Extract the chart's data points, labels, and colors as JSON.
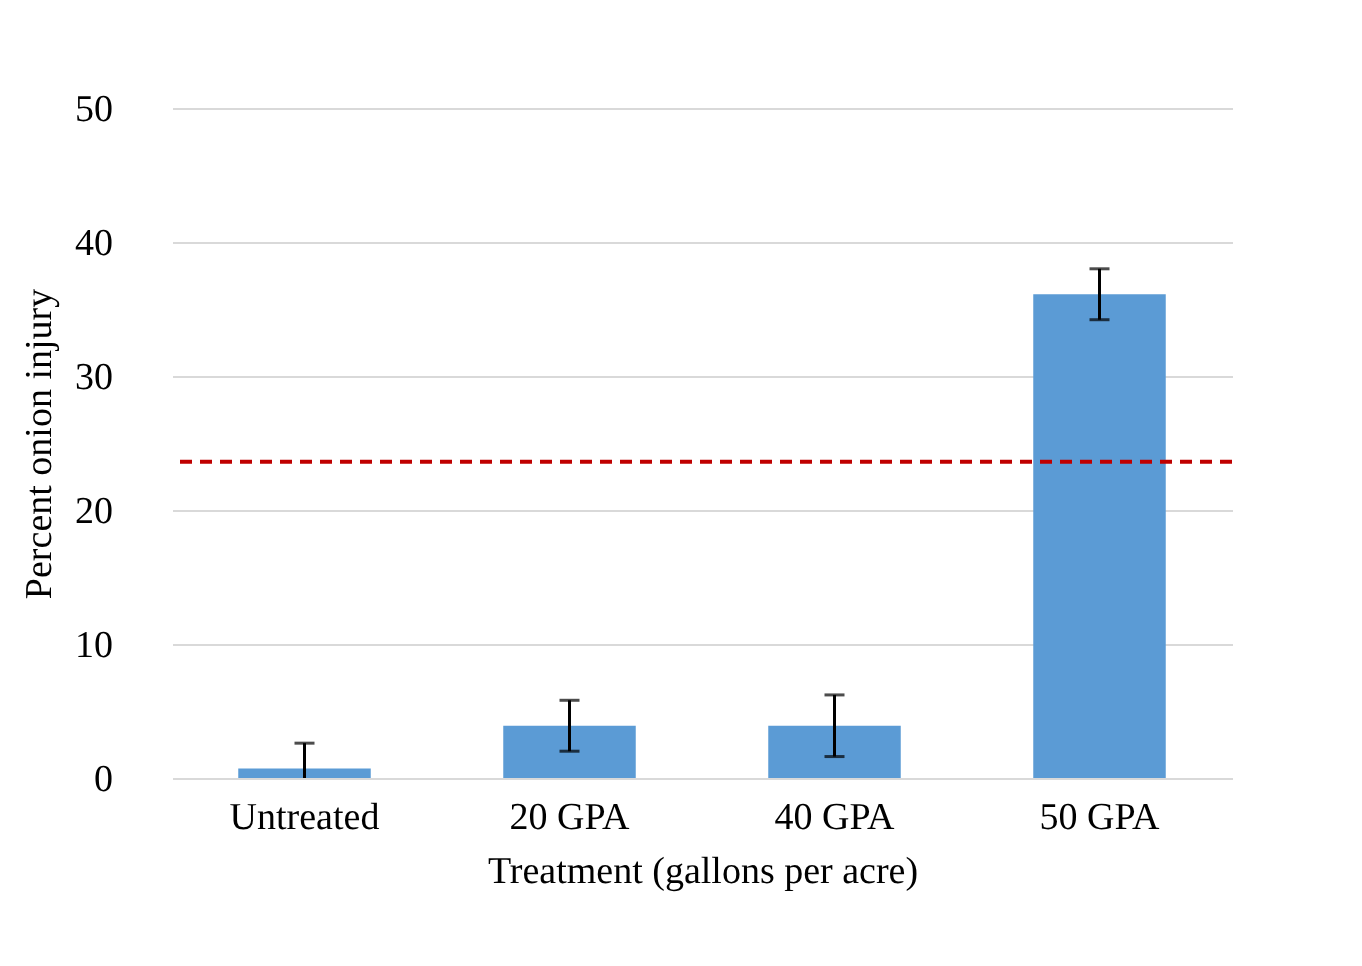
{
  "chart_data": {
    "type": "bar",
    "xlabel": "Treatment (gallons per acre)",
    "ylabel": "Percent onion injury",
    "categories": [
      "Untreated",
      "20 GPA",
      "40 GPA",
      "50 GPA"
    ],
    "values": [
      0.7,
      3.9,
      3.9,
      36.1
    ],
    "color": "#5b9bd5",
    "errors": [
      1.9,
      1.9,
      2.3,
      1.9
    ],
    "ref_lines": [
      {
        "axis": "y",
        "value": 23.6,
        "color": "#c00000",
        "line_style": "dashed"
      }
    ],
    "ylim": [
      0,
      50
    ],
    "yticks": [
      0,
      10,
      20,
      30,
      40,
      50
    ],
    "grid": "y"
  }
}
